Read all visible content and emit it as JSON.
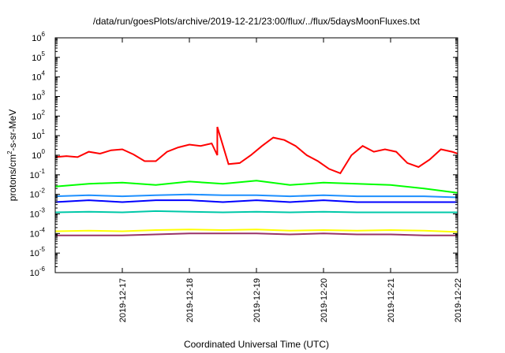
{
  "chart_data": {
    "type": "line",
    "title": "/data/run/goesPlots/archive/2019-12-21/23:00/flux/../flux/5daysMoonFluxes.txt",
    "xlabel": "Coordinated Universal Time (UTC)",
    "ylabel_main": "protons/cm",
    "ylabel_sup": "2",
    "ylabel_tail": "-s-sr-MeV",
    "y_scale": "log",
    "ylim": [
      1e-06,
      1000000.0
    ],
    "y_ticks": [
      {
        "base": "10",
        "exp": "-6"
      },
      {
        "base": "10",
        "exp": "-5"
      },
      {
        "base": "10",
        "exp": "-4"
      },
      {
        "base": "10",
        "exp": "-3"
      },
      {
        "base": "10",
        "exp": "-2"
      },
      {
        "base": "10",
        "exp": "-1"
      },
      {
        "base": "10",
        "exp": "0"
      },
      {
        "base": "10",
        "exp": "1"
      },
      {
        "base": "10",
        "exp": "2"
      },
      {
        "base": "10",
        "exp": "3"
      },
      {
        "base": "10",
        "exp": "4"
      },
      {
        "base": "10",
        "exp": "5"
      },
      {
        "base": "10",
        "exp": "6"
      }
    ],
    "x_ticks": [
      "2019-12-17",
      "2019-12-18",
      "2019-12-19",
      "2019-12-20",
      "2019-12-21",
      "2019-12-22"
    ],
    "xlim": [
      "2019-12-16T00:00",
      "2019-12-22T00:00"
    ],
    "grid": false,
    "legend": "none",
    "series": [
      {
        "color": "#ff0000",
        "points": [
          [
            "2019-12-16T00:00",
            0.8
          ],
          [
            "2019-12-16T04:00",
            0.9
          ],
          [
            "2019-12-16T08:00",
            0.8
          ],
          [
            "2019-12-16T12:00",
            1.5
          ],
          [
            "2019-12-16T16:00",
            1.2
          ],
          [
            "2019-12-16T20:00",
            1.8
          ],
          [
            "2019-12-17T00:00",
            2.0
          ],
          [
            "2019-12-17T04:00",
            1.1
          ],
          [
            "2019-12-17T08:00",
            0.5
          ],
          [
            "2019-12-17T12:00",
            0.5
          ],
          [
            "2019-12-17T16:00",
            1.5
          ],
          [
            "2019-12-17T20:00",
            2.5
          ],
          [
            "2019-12-18T00:00",
            3.5
          ],
          [
            "2019-12-18T04:00",
            3.0
          ],
          [
            "2019-12-18T08:00",
            4.0
          ],
          [
            "2019-12-18T10:00",
            1.0
          ],
          [
            "2019-12-18T14:00",
            0.35
          ],
          [
            "2019-12-18T18:00",
            0.4
          ],
          [
            "2019-12-18T22:00",
            1.0
          ],
          [
            "2019-12-19T02:00",
            3.0
          ],
          [
            "2019-12-18T10:00",
            28
          ],
          [
            "2019-12-19T06:00",
            8.0
          ],
          [
            "2019-12-19T10:00",
            6.0
          ],
          [
            "2019-12-19T14:00",
            3.0
          ],
          [
            "2019-12-19T18:00",
            1.0
          ],
          [
            "2019-12-19T22:00",
            0.5
          ],
          [
            "2019-12-20T02:00",
            0.2
          ],
          [
            "2019-12-20T06:00",
            0.12
          ],
          [
            "2019-12-20T10:00",
            1.0
          ],
          [
            "2019-12-20T14:00",
            3.0
          ],
          [
            "2019-12-20T18:00",
            1.5
          ],
          [
            "2019-12-20T22:00",
            2.0
          ],
          [
            "2019-12-21T02:00",
            1.5
          ],
          [
            "2019-12-21T06:00",
            0.4
          ],
          [
            "2019-12-21T10:00",
            0.25
          ],
          [
            "2019-12-21T14:00",
            0.6
          ],
          [
            "2019-12-21T18:00",
            2.0
          ],
          [
            "2019-12-21T22:00",
            1.5
          ],
          [
            "2019-12-22T00:00",
            1.2
          ]
        ]
      },
      {
        "color": "#00ff00",
        "points": [
          [
            "2019-12-16T00:00",
            0.025
          ],
          [
            "2019-12-16T12:00",
            0.035
          ],
          [
            "2019-12-17T00:00",
            0.04
          ],
          [
            "2019-12-17T12:00",
            0.03
          ],
          [
            "2019-12-18T00:00",
            0.045
          ],
          [
            "2019-12-18T12:00",
            0.035
          ],
          [
            "2019-12-19T00:00",
            0.05
          ],
          [
            "2019-12-19T12:00",
            0.03
          ],
          [
            "2019-12-20T00:00",
            0.04
          ],
          [
            "2019-12-20T12:00",
            0.035
          ],
          [
            "2019-12-21T00:00",
            0.03
          ],
          [
            "2019-12-21T12:00",
            0.02
          ],
          [
            "2019-12-22T00:00",
            0.012
          ]
        ]
      },
      {
        "color": "#1e90ff",
        "points": [
          [
            "2019-12-16T00:00",
            0.008
          ],
          [
            "2019-12-16T12:00",
            0.009
          ],
          [
            "2019-12-17T00:00",
            0.008
          ],
          [
            "2019-12-17T12:00",
            0.009
          ],
          [
            "2019-12-18T00:00",
            0.01
          ],
          [
            "2019-12-18T12:00",
            0.009
          ],
          [
            "2019-12-19T00:00",
            0.009
          ],
          [
            "2019-12-19T12:00",
            0.008
          ],
          [
            "2019-12-20T00:00",
            0.009
          ],
          [
            "2019-12-20T12:00",
            0.008
          ],
          [
            "2019-12-21T00:00",
            0.008
          ],
          [
            "2019-12-21T12:00",
            0.008
          ],
          [
            "2019-12-22T00:00",
            0.007
          ]
        ]
      },
      {
        "color": "#0000ff",
        "points": [
          [
            "2019-12-16T00:00",
            0.004
          ],
          [
            "2019-12-16T12:00",
            0.005
          ],
          [
            "2019-12-17T00:00",
            0.004
          ],
          [
            "2019-12-17T12:00",
            0.005
          ],
          [
            "2019-12-18T00:00",
            0.005
          ],
          [
            "2019-12-18T12:00",
            0.004
          ],
          [
            "2019-12-19T00:00",
            0.005
          ],
          [
            "2019-12-19T12:00",
            0.004
          ],
          [
            "2019-12-20T00:00",
            0.005
          ],
          [
            "2019-12-20T12:00",
            0.004
          ],
          [
            "2019-12-21T00:00",
            0.004
          ],
          [
            "2019-12-21T12:00",
            0.004
          ],
          [
            "2019-12-22T00:00",
            0.004
          ]
        ]
      },
      {
        "color": "#00c8a8",
        "points": [
          [
            "2019-12-16T00:00",
            0.0012
          ],
          [
            "2019-12-16T12:00",
            0.0013
          ],
          [
            "2019-12-17T00:00",
            0.0012
          ],
          [
            "2019-12-17T12:00",
            0.0014
          ],
          [
            "2019-12-18T00:00",
            0.0013
          ],
          [
            "2019-12-18T12:00",
            0.0012
          ],
          [
            "2019-12-19T00:00",
            0.0013
          ],
          [
            "2019-12-19T12:00",
            0.0012
          ],
          [
            "2019-12-20T00:00",
            0.0013
          ],
          [
            "2019-12-20T12:00",
            0.0012
          ],
          [
            "2019-12-21T00:00",
            0.0012
          ],
          [
            "2019-12-21T12:00",
            0.0012
          ],
          [
            "2019-12-22T00:00",
            0.0012
          ]
        ]
      },
      {
        "color": "#ffff00",
        "points": [
          [
            "2019-12-16T00:00",
            0.00013
          ],
          [
            "2019-12-16T12:00",
            0.00014
          ],
          [
            "2019-12-17T00:00",
            0.00013
          ],
          [
            "2019-12-17T12:00",
            0.00015
          ],
          [
            "2019-12-18T00:00",
            0.00016
          ],
          [
            "2019-12-18T12:00",
            0.00015
          ],
          [
            "2019-12-19T00:00",
            0.00016
          ],
          [
            "2019-12-19T12:00",
            0.00014
          ],
          [
            "2019-12-20T00:00",
            0.00015
          ],
          [
            "2019-12-20T12:00",
            0.00014
          ],
          [
            "2019-12-21T00:00",
            0.00015
          ],
          [
            "2019-12-21T12:00",
            0.00014
          ],
          [
            "2019-12-22T00:00",
            0.00012
          ]
        ]
      },
      {
        "color": "#993366",
        "points": [
          [
            "2019-12-16T00:00",
            8e-05
          ],
          [
            "2019-12-16T12:00",
            8e-05
          ],
          [
            "2019-12-17T00:00",
            8e-05
          ],
          [
            "2019-12-17T12:00",
            9e-05
          ],
          [
            "2019-12-18T00:00",
            0.0001
          ],
          [
            "2019-12-18T12:00",
            0.0001
          ],
          [
            "2019-12-19T00:00",
            0.0001
          ],
          [
            "2019-12-19T12:00",
            9e-05
          ],
          [
            "2019-12-20T00:00",
            0.0001
          ],
          [
            "2019-12-20T12:00",
            9e-05
          ],
          [
            "2019-12-21T00:00",
            9e-05
          ],
          [
            "2019-12-21T12:00",
            8e-05
          ],
          [
            "2019-12-22T00:00",
            8e-05
          ]
        ]
      }
    ]
  }
}
